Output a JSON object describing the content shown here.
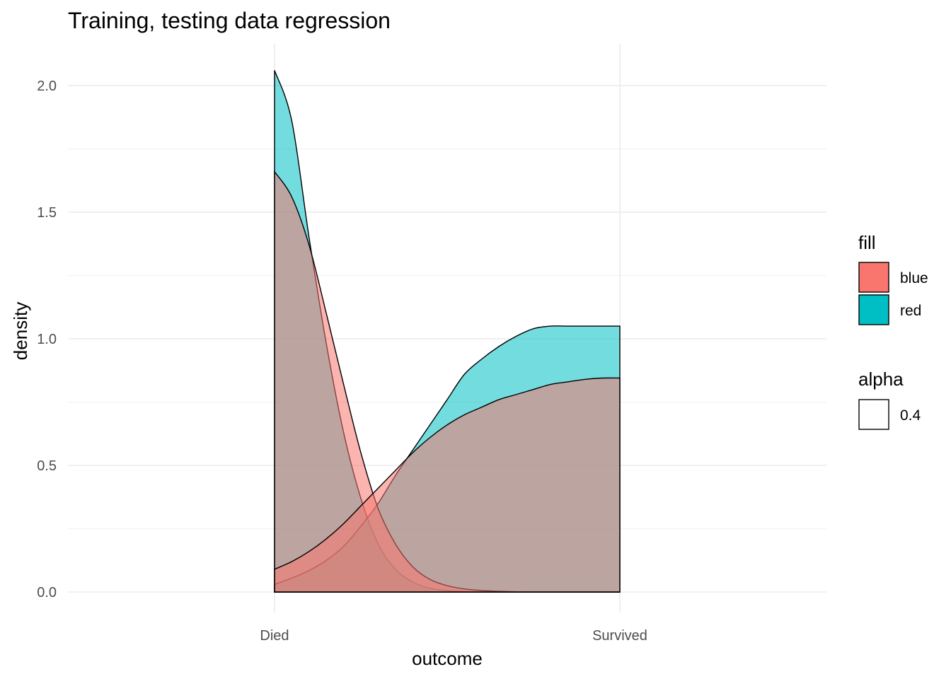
{
  "chart_data": {
    "type": "area",
    "title": "Training, testing data regression",
    "xlabel": "outcome",
    "ylabel": "density",
    "categories": [
      "Died",
      "Survived"
    ],
    "ylim": [
      -0.08,
      2.2
    ],
    "yticks": [
      "0.0",
      "0.5",
      "1.0",
      "1.5",
      "2.0"
    ],
    "ytick_values": [
      0.0,
      0.5,
      1.0,
      1.5,
      2.0
    ],
    "grid": true,
    "legend_placement": "right",
    "legends": [
      {
        "title": "fill",
        "entries": [
          {
            "label": "blue",
            "color": "#F8766D"
          },
          {
            "label": "red",
            "color": "#00BFC4"
          }
        ]
      },
      {
        "title": "alpha",
        "entries": [
          {
            "label": "0.4",
            "color": "#ffffff"
          }
        ]
      }
    ],
    "series": [
      {
        "group": "red",
        "fill": "#00BFC4",
        "alpha": 0.55,
        "x": [
          0.0,
          0.05,
          0.1,
          0.15,
          0.2,
          0.25,
          0.3,
          0.35,
          0.4,
          0.45,
          0.5,
          0.55,
          0.6,
          0.65,
          0.7,
          0.75,
          0.8,
          0.85,
          0.9,
          0.95,
          1.0
        ],
        "values": [
          2.06,
          1.86,
          1.4,
          0.98,
          0.63,
          0.37,
          0.19,
          0.09,
          0.04,
          0.015,
          0.006,
          0.002,
          0.001,
          0.0,
          0.0,
          0.0,
          0.0,
          0.0,
          0.0,
          0.0,
          0.0
        ]
      },
      {
        "group": "red",
        "fill": "#00BFC4",
        "alpha": 0.55,
        "x": [
          0.0,
          0.05,
          0.1,
          0.15,
          0.2,
          0.25,
          0.3,
          0.35,
          0.4,
          0.45,
          0.5,
          0.55,
          0.6,
          0.65,
          0.7,
          0.75,
          0.8,
          0.85,
          0.9,
          0.95,
          1.0
        ],
        "values": [
          0.03,
          0.055,
          0.085,
          0.125,
          0.18,
          0.26,
          0.35,
          0.46,
          0.56,
          0.66,
          0.76,
          0.86,
          0.92,
          0.97,
          1.01,
          1.04,
          1.05,
          1.05,
          1.05,
          1.05,
          1.05
        ]
      },
      {
        "group": "blue",
        "fill": "#F8766D",
        "alpha": 0.55,
        "x": [
          0.0,
          0.05,
          0.1,
          0.15,
          0.2,
          0.25,
          0.3,
          0.35,
          0.4,
          0.45,
          0.5,
          0.55,
          0.6,
          0.65,
          0.7,
          0.75,
          0.8,
          0.85,
          0.9,
          0.95,
          1.0
        ],
        "values": [
          1.66,
          1.56,
          1.37,
          1.1,
          0.82,
          0.55,
          0.33,
          0.19,
          0.1,
          0.05,
          0.025,
          0.012,
          0.006,
          0.003,
          0.001,
          0.0,
          0.0,
          0.0,
          0.0,
          0.0,
          0.0
        ]
      },
      {
        "group": "blue",
        "fill": "#F8766D",
        "alpha": 0.55,
        "x": [
          0.0,
          0.05,
          0.1,
          0.15,
          0.2,
          0.25,
          0.3,
          0.35,
          0.4,
          0.45,
          0.5,
          0.55,
          0.6,
          0.65,
          0.7,
          0.75,
          0.8,
          0.85,
          0.9,
          0.95,
          1.0
        ],
        "values": [
          0.09,
          0.12,
          0.16,
          0.21,
          0.27,
          0.34,
          0.41,
          0.48,
          0.55,
          0.61,
          0.66,
          0.7,
          0.73,
          0.76,
          0.78,
          0.8,
          0.82,
          0.83,
          0.84,
          0.845,
          0.845
        ]
      }
    ]
  }
}
